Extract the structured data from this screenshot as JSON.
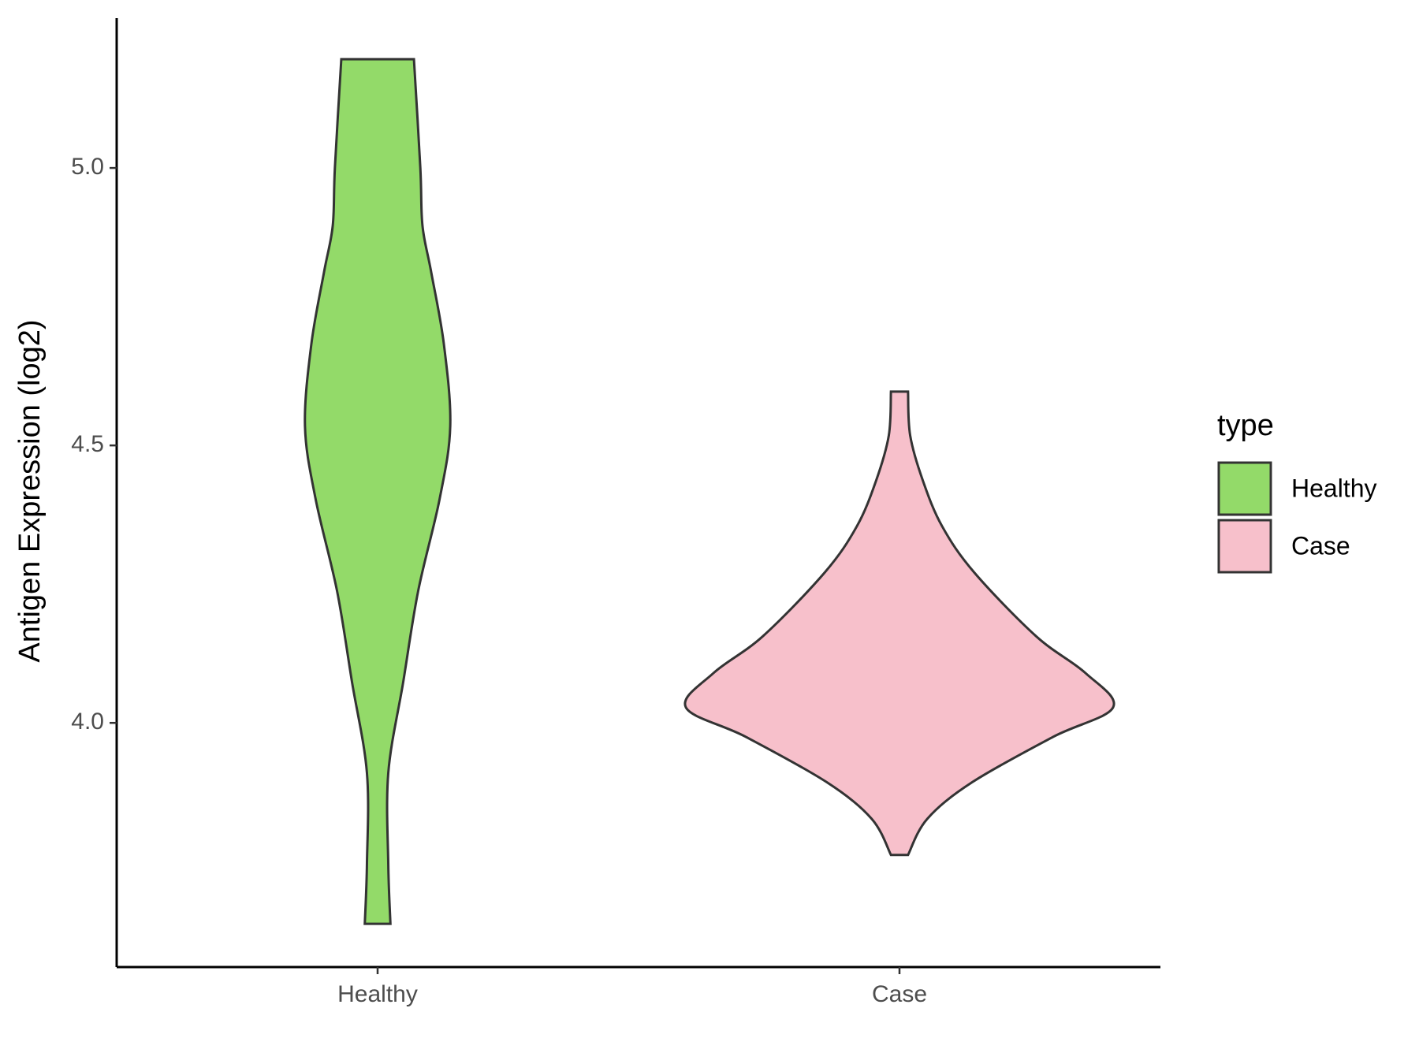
{
  "chart_data": {
    "type": "violin",
    "ylabel": "Antigen Expression (log2)",
    "categories": [
      "Healthy",
      "Case"
    ],
    "ylim": [
      3.56,
      5.27
    ],
    "yticks": [
      {
        "value": 4,
        "label": "4.0"
      },
      4.5,
      {
        "value": 5,
        "label": "5.0"
      }
    ],
    "legend_title": "type",
    "legend_position": "right",
    "series": [
      {
        "name": "Healthy",
        "color": "#93da69",
        "y": [
          5.196,
          5.0,
          4.896,
          4.814,
          4.683,
          4.535,
          4.403,
          4.238,
          4.074,
          3.91,
          3.745,
          3.638
        ],
        "widths": [
          0.17,
          0.2,
          0.21,
          0.25,
          0.31,
          0.34,
          0.29,
          0.19,
          0.12,
          0.05,
          0.05,
          0.06
        ]
      },
      {
        "name": "Case",
        "color": "#f7c0cb",
        "y": [
          4.597,
          4.518,
          4.436,
          4.354,
          4.271,
          4.156,
          4.09,
          4.028,
          3.975,
          3.893,
          3.827,
          3.762
        ],
        "widths": [
          0.04,
          0.05,
          0.11,
          0.2,
          0.35,
          0.64,
          0.87,
          1,
          0.72,
          0.34,
          0.13,
          0.04
        ]
      }
    ]
  }
}
